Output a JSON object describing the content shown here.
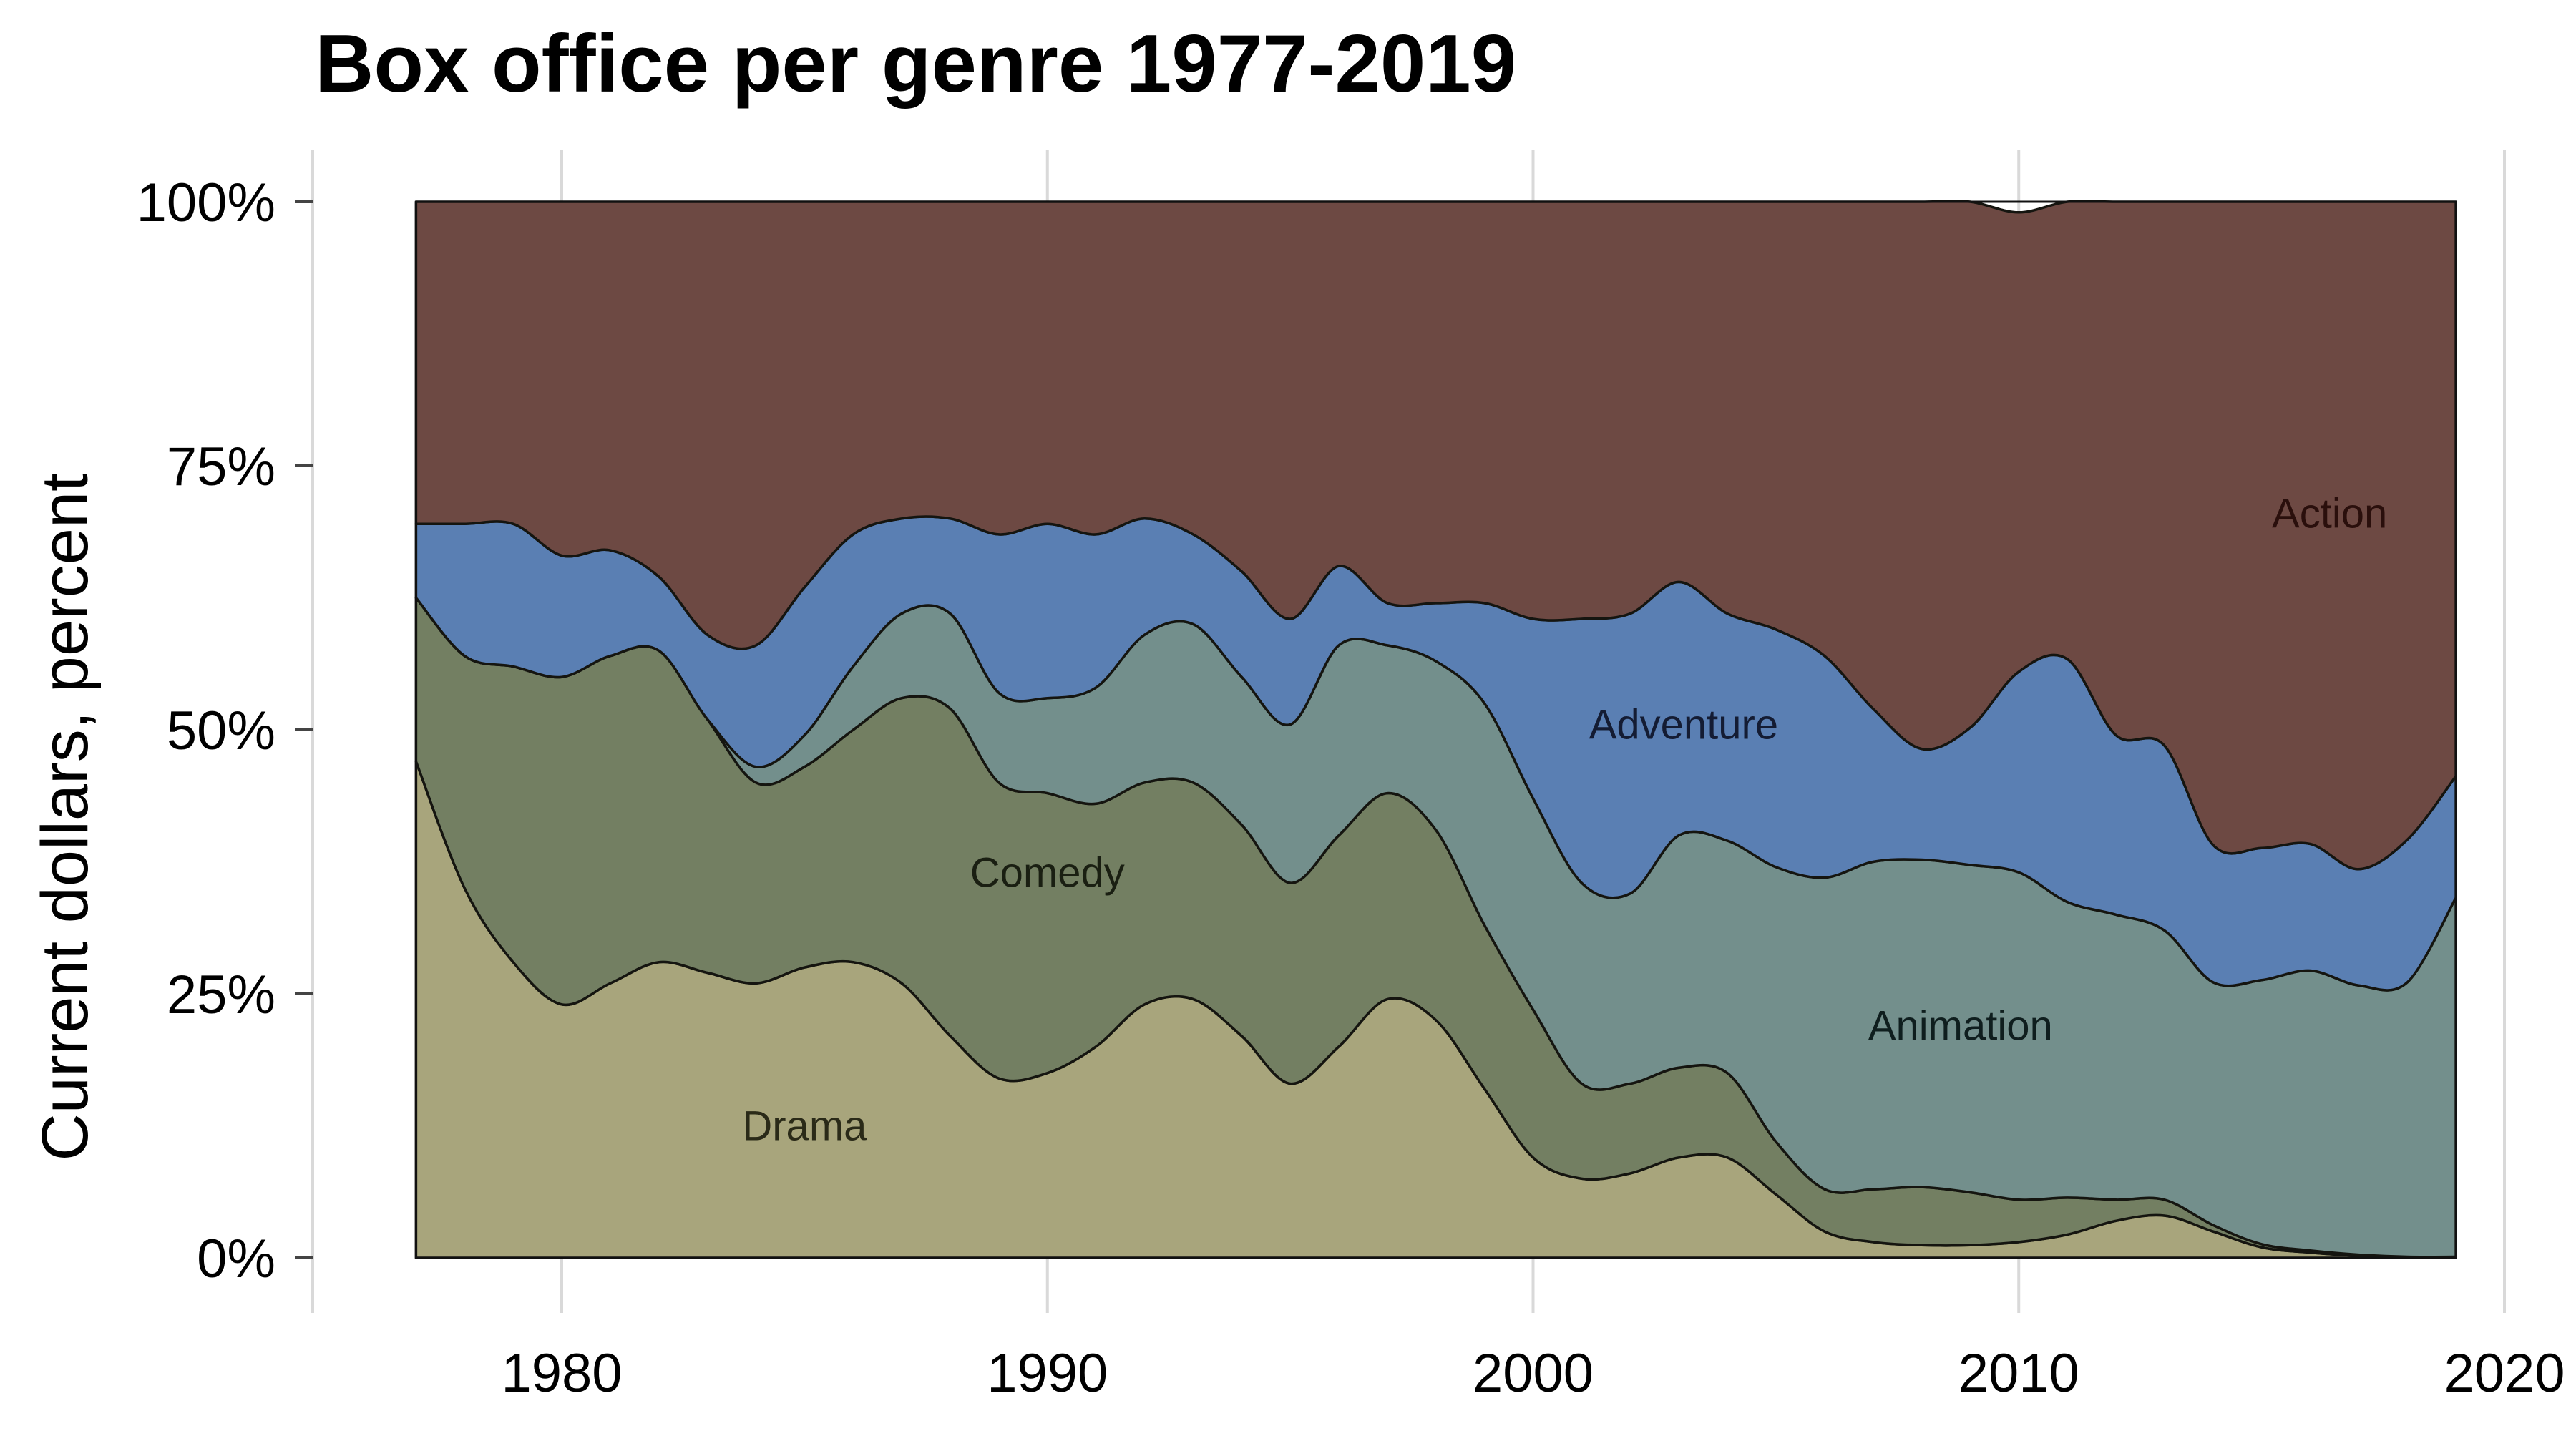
{
  "chart_data": {
    "type": "area",
    "stacked": true,
    "normalized": true,
    "title": "Box office per genre 1977-2019",
    "ylabel": "Current dollars, percent",
    "xlabel": "",
    "xlim": [
      1975,
      2020
    ],
    "ylim": [
      0,
      100
    ],
    "x_ticks": [
      "1980",
      "1990",
      "2000",
      "2010",
      "2020"
    ],
    "x_tick_values": [
      1980,
      1990,
      2000,
      2010,
      2020
    ],
    "y_ticks": [
      "0%",
      "25%",
      "50%",
      "75%",
      "100%"
    ],
    "y_tick_values": [
      0,
      25,
      50,
      75,
      100
    ],
    "grid": "vertical-major",
    "legend": "inline-labels",
    "x": [
      1977,
      1978,
      1979,
      1980,
      1981,
      1982,
      1983,
      1984,
      1985,
      1986,
      1987,
      1988,
      1989,
      1990,
      1991,
      1992,
      1993,
      1994,
      1995,
      1996,
      1997,
      1998,
      1999,
      2000,
      2001,
      2002,
      2003,
      2004,
      2005,
      2006,
      2007,
      2008,
      2009,
      2010,
      2011,
      2012,
      2013,
      2014,
      2015,
      2016,
      2017,
      2018,
      2019
    ],
    "series": [
      {
        "name": "Drama",
        "color": "#a8a57c",
        "label_color": "#2a2a18",
        "values": [
          47,
          35,
          28,
          24,
          26,
          28,
          27,
          26,
          27.5,
          28,
          26,
          21,
          17,
          17.5,
          20,
          24,
          24.5,
          21,
          16.5,
          20,
          24.5,
          22.5,
          16,
          9.5,
          7.5,
          8,
          9.5,
          9.5,
          6,
          2.5,
          1.5,
          1.2,
          1.2,
          1.5,
          2.2,
          3.5,
          4,
          2.5,
          1,
          0.5,
          0.2,
          0.1,
          0.1
        ]
      },
      {
        "name": "Comedy",
        "color": "#737f62",
        "label_color": "#1a1f12",
        "values": [
          15.5,
          22,
          28,
          31,
          31,
          29.5,
          24,
          19,
          19,
          22,
          27,
          31,
          28,
          26.5,
          23,
          21,
          20.5,
          20,
          19,
          20,
          19.5,
          18,
          15.5,
          14,
          9,
          8.5,
          8.5,
          8,
          5,
          4,
          5,
          5.5,
          5,
          4,
          3.5,
          2,
          1.5,
          0.6,
          0.3,
          0.2,
          0.1,
          0,
          0
        ]
      },
      {
        "name": "Animation",
        "color": "#738f8c",
        "label_color": "#0f1e1e",
        "values": [
          0,
          0,
          0,
          0,
          0,
          0,
          0,
          1.5,
          3,
          6,
          8,
          9,
          8.5,
          9,
          11,
          14,
          15,
          14,
          15,
          18,
          14,
          16,
          21,
          20,
          19,
          18,
          22,
          22,
          26,
          29.5,
          31,
          31,
          31,
          31,
          28,
          27,
          25.5,
          23,
          25,
          26.5,
          25.5,
          26,
          34
        ]
      },
      {
        "name": "Adventure",
        "color": "#5a7fb3",
        "label_color": "#141c33",
        "values": [
          7,
          12.5,
          13.5,
          11.5,
          10,
          7,
          8,
          11.5,
          14,
          12.5,
          9,
          9,
          15,
          16.5,
          14.5,
          11,
          8.5,
          10,
          10,
          7.5,
          4,
          5.5,
          9.5,
          17,
          25,
          26.5,
          24,
          21.5,
          22.5,
          21,
          14.5,
          10.5,
          13,
          19,
          23,
          17,
          17.5,
          13,
          12.5,
          12,
          11,
          13.5,
          11.5
        ]
      },
      {
        "name": "Action",
        "color": "#6d4943",
        "label_color": "#2a0f0c",
        "values": [
          30.5,
          30.5,
          30.5,
          33.5,
          33,
          35.5,
          41,
          42,
          36.5,
          31.5,
          30,
          30,
          31.5,
          30.5,
          31.5,
          30,
          31.5,
          35,
          39.5,
          34.5,
          38,
          38,
          38,
          39.5,
          39.5,
          39,
          36,
          39,
          40.5,
          43,
          48,
          51.8,
          49.8,
          43.5,
          43.3,
          50.5,
          51.5,
          60.9,
          61.2,
          60.8,
          63.2,
          60.4,
          54.4
        ]
      }
    ]
  }
}
